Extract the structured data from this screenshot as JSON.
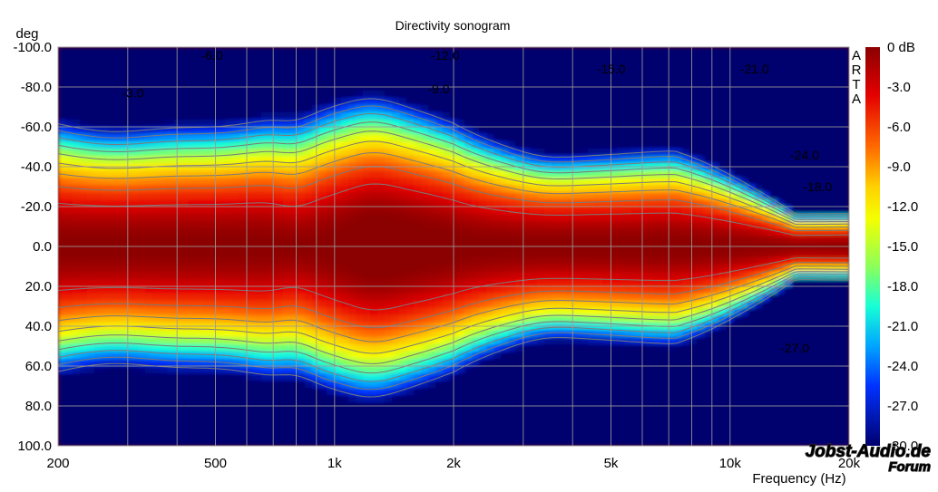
{
  "chart_data": {
    "type": "heatmap",
    "title": "Directivity sonogram",
    "xlabel": "Frequency (Hz)",
    "ylabel": "deg",
    "x_scale": "log",
    "xlim": [
      200,
      20000
    ],
    "ylim": [
      -100,
      100
    ],
    "x_ticks": [
      {
        "value": 200,
        "label": "200"
      },
      {
        "value": 500,
        "label": "500"
      },
      {
        "value": 1000,
        "label": "1k"
      },
      {
        "value": 2000,
        "label": "2k"
      },
      {
        "value": 5000,
        "label": "5k"
      },
      {
        "value": 10000,
        "label": "10k"
      },
      {
        "value": 20000,
        "label": "20k"
      }
    ],
    "y_ticks": [
      {
        "value": -100,
        "label": "-100.0"
      },
      {
        "value": -80,
        "label": "-80.0"
      },
      {
        "value": -60,
        "label": "-60.0"
      },
      {
        "value": -40,
        "label": "-40.0"
      },
      {
        "value": -20,
        "label": "-20.0"
      },
      {
        "value": 0,
        "label": "0.0"
      },
      {
        "value": 20,
        "label": "20.0"
      },
      {
        "value": 40,
        "label": "40.0"
      },
      {
        "value": 60,
        "label": "60.0"
      },
      {
        "value": 80,
        "label": "80.0"
      },
      {
        "value": 100,
        "label": "100.0"
      }
    ],
    "grid": true,
    "colorbar": {
      "range_db": [
        -30,
        0
      ],
      "ticks": [
        {
          "value": 0,
          "label": "0 dB"
        },
        {
          "value": -3,
          "label": "-3.0"
        },
        {
          "value": -6,
          "label": "-6.0"
        },
        {
          "value": -9,
          "label": "-9.0"
        },
        {
          "value": -12,
          "label": "-12.0"
        },
        {
          "value": -15,
          "label": "-15.0"
        },
        {
          "value": -18,
          "label": "-18.0"
        },
        {
          "value": -21,
          "label": "-21.0"
        },
        {
          "value": -24,
          "label": "-24.0"
        },
        {
          "value": -27,
          "label": "-27.0"
        },
        {
          "value": -30,
          "label": "-30.0"
        }
      ]
    },
    "contour_labels": [
      {
        "text": "-3.0",
        "freq": 290,
        "angle": -77
      },
      {
        "text": "-6.0",
        "freq": 460,
        "angle": -96
      },
      {
        "text": "-12.0",
        "freq": 1750,
        "angle": -96
      },
      {
        "text": "-9.0",
        "freq": 1720,
        "angle": -79
      },
      {
        "text": "-15.0",
        "freq": 4600,
        "angle": -89
      },
      {
        "text": "-21.0",
        "freq": 10600,
        "angle": -89
      },
      {
        "text": "-24.0",
        "freq": 14200,
        "angle": -46
      },
      {
        "text": "-18.0",
        "freq": 15300,
        "angle": -30
      },
      {
        "text": "-27.0",
        "freq": 13400,
        "angle": 51
      }
    ],
    "side_label": [
      "A",
      "R",
      "T",
      "A"
    ],
    "watermark": [
      "Jobst-Audio.de",
      "Forum"
    ]
  }
}
